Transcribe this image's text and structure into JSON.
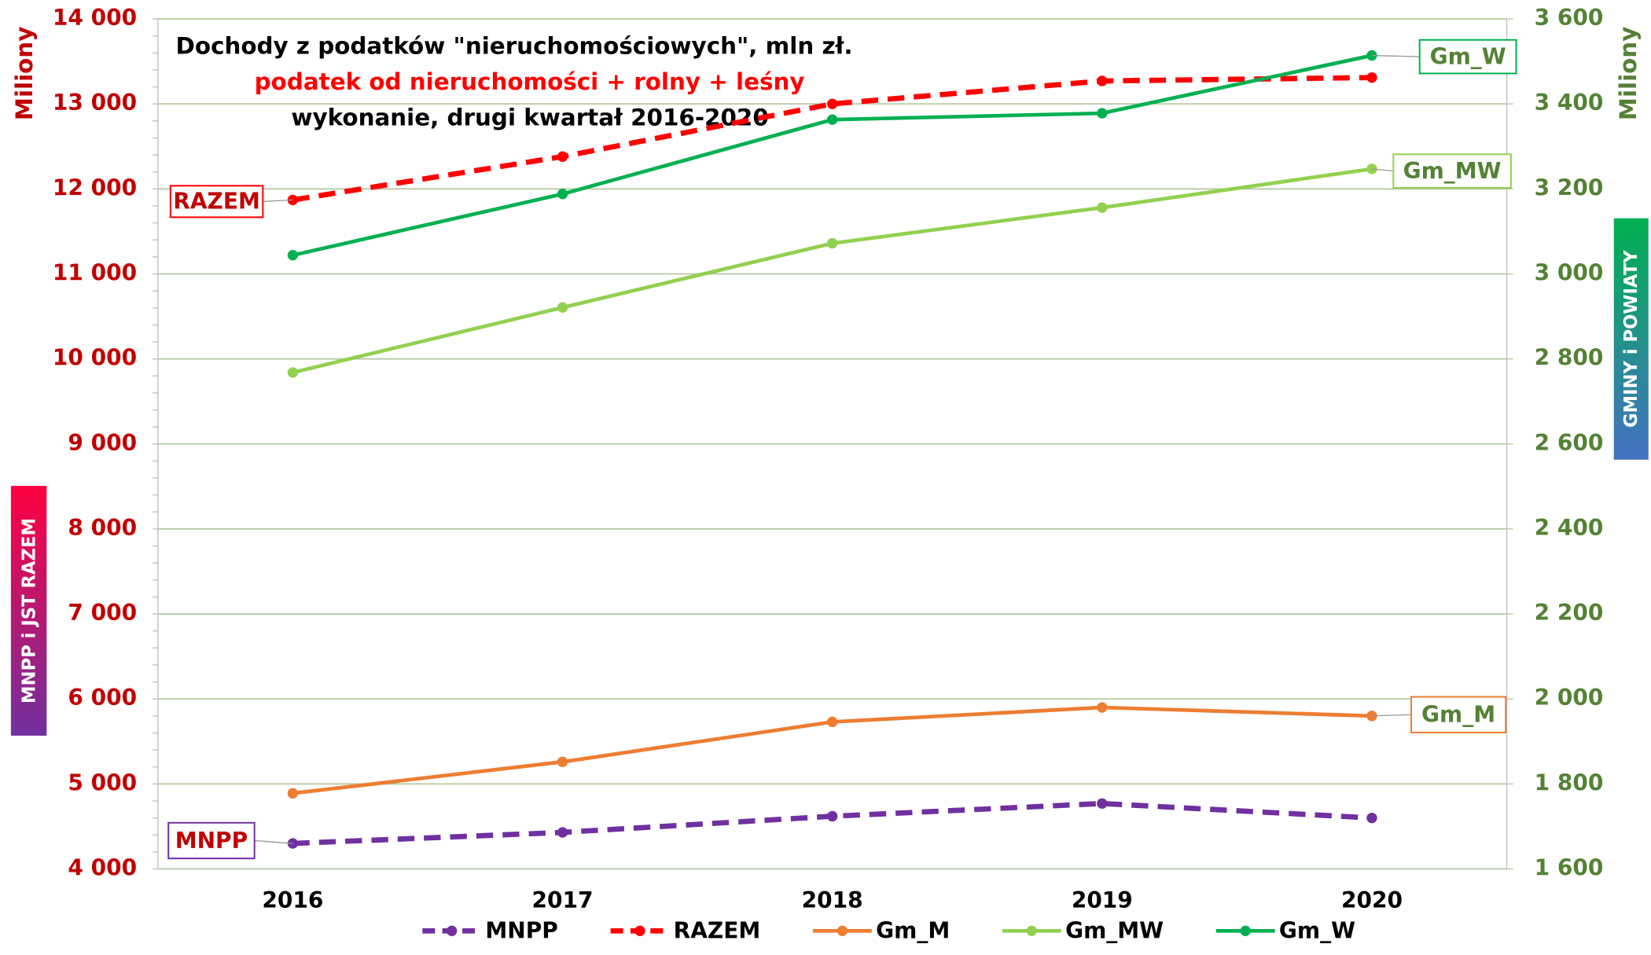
{
  "chart_data": {
    "type": "line",
    "title": "Dochody z podatków \"nieruchomościowych\",  mln zł.",
    "subtitle": "podatek od nieruchomości + rolny + leśny",
    "note": "wykonanie, drugi kwartał 2016-2020",
    "ylabel": "Miliony",
    "y2label": "Miliony",
    "side_labels": [
      "MNPP  i  JST  RAZEM",
      "GMINY  i  POWIATY"
    ],
    "categories": [
      "2016",
      "2017",
      "2018",
      "2019",
      "2020"
    ],
    "ylim": [
      4000,
      14000
    ],
    "yticks": [
      {
        "value": 4000,
        "label": "4 000"
      },
      {
        "value": 5000,
        "label": "5 000"
      },
      {
        "value": 6000,
        "label": "6 000"
      },
      {
        "value": 7000,
        "label": "7 000"
      },
      {
        "value": 8000,
        "label": "8 000"
      },
      {
        "value": 9000,
        "label": "9 000"
      },
      {
        "value": 10000,
        "label": "10 000"
      },
      {
        "value": 11000,
        "label": "11 000"
      },
      {
        "value": 12000,
        "label": "12 000"
      },
      {
        "value": 13000,
        "label": "13 000"
      },
      {
        "value": 14000,
        "label": "14 000"
      }
    ],
    "y2lim": [
      1600,
      3600
    ],
    "y2ticks": [
      {
        "value": 1600,
        "label": "1 600"
      },
      {
        "value": 1800,
        "label": "1 800"
      },
      {
        "value": 2000,
        "label": "2 000"
      },
      {
        "value": 2200,
        "label": "2 200"
      },
      {
        "value": 2400,
        "label": "2 400"
      },
      {
        "value": 2600,
        "label": "2 600"
      },
      {
        "value": 2800,
        "label": "2 800"
      },
      {
        "value": 3000,
        "label": "3 000"
      },
      {
        "value": 3200,
        "label": "3 200"
      },
      {
        "value": 3400,
        "label": "3 400"
      },
      {
        "value": 3600,
        "label": "3 600"
      }
    ],
    "grid": true,
    "legend": "bottom",
    "series": [
      {
        "name": "MNPP",
        "color": "#7030a0",
        "dashed": true,
        "values": [
          4300,
          4430,
          4620,
          4770,
          4600
        ]
      },
      {
        "name": "RAZEM",
        "color": "#ff0000",
        "dashed": true,
        "values": [
          11870,
          12380,
          13000,
          13270,
          13310
        ]
      },
      {
        "name": "Gm_M",
        "color": "#ed7d31",
        "axis": "y2",
        "values": [
          1778,
          1852,
          1946,
          1980,
          1960
        ]
      },
      {
        "name": "Gm_MW",
        "color": "#92d050",
        "axis": "y2",
        "values": [
          2768,
          2921,
          3072,
          3156,
          3247
        ]
      },
      {
        "name": "Gm_W",
        "color": "#00b050",
        "axis": "y2",
        "values": [
          3044,
          3188,
          3363,
          3378,
          3514
        ]
      }
    ]
  }
}
